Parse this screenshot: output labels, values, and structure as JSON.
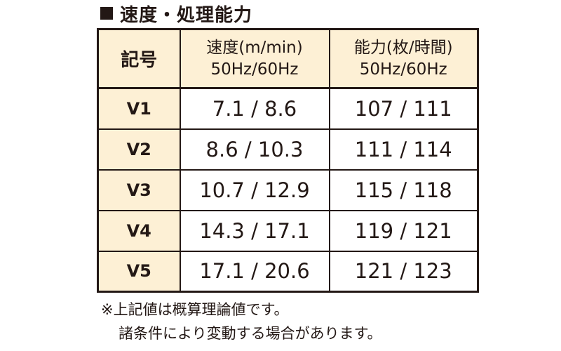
{
  "heading": {
    "marker": "■",
    "title": "速度・処理能力"
  },
  "table": {
    "headers": {
      "code": "記号",
      "speed": [
        "速度(m/min)",
        "50Hz/60Hz"
      ],
      "capacity": [
        "能力(枚/時間)",
        "50Hz/60Hz"
      ]
    },
    "rows": [
      {
        "code": "V1",
        "speed": "7.1 / 8.6",
        "capacity": "107 / 111"
      },
      {
        "code": "V2",
        "speed": "8.6 / 10.3",
        "capacity": "111 / 114"
      },
      {
        "code": "V3",
        "speed": "10.7 / 12.9",
        "capacity": "115 / 118"
      },
      {
        "code": "V4",
        "speed": "14.3 / 17.1",
        "capacity": "119 / 121"
      },
      {
        "code": "V5",
        "speed": "17.1 / 20.6",
        "capacity": "121 / 123"
      }
    ]
  },
  "notes": [
    "※上記値は概算理論値です。",
    "諸条件により変動する場合があります。"
  ],
  "colors": {
    "header_bg": "#fdf0d5",
    "border": "#231815",
    "text": "#231815"
  }
}
